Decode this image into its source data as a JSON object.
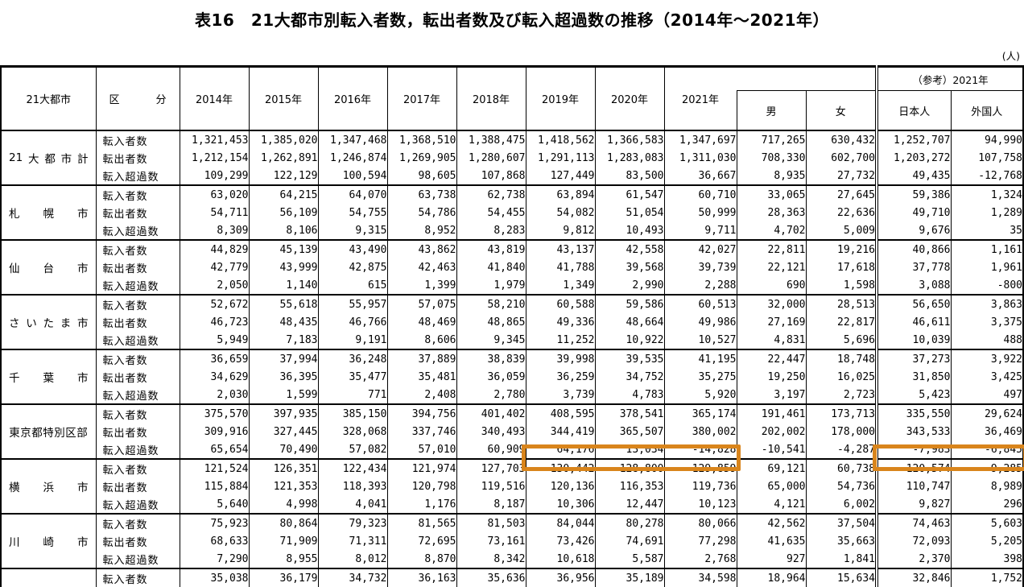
{
  "page_title": "表16　21大都市別転入者数，転出者数及び転入超過数の推移（2014年～2021年）",
  "unit_note": "(人)",
  "table": {
    "header": {
      "city_label": "21大都市",
      "category_label_segments": [
        "区",
        "分"
      ],
      "year_labels": [
        "2014年",
        "2015年",
        "2016年",
        "2017年",
        "2018年",
        "2019年",
        "2020年",
        "2021年"
      ],
      "male_label": "男",
      "female_label": "女",
      "reference_label": "（参考）2021年",
      "japanese_label": "日本人",
      "foreigner_label": "外国人"
    },
    "row_labels": [
      "転入者数",
      "転出者数",
      "転入超過数"
    ],
    "groups": [
      {
        "city": "21大都市計",
        "city_segments": [
          "21",
          "大",
          "都",
          "市",
          "計"
        ],
        "rows": [
          {
            "label": "転入者数",
            "values": [
              "1,321,453",
              "1,385,020",
              "1,347,468",
              "1,368,510",
              "1,388,475",
              "1,418,562",
              "1,366,583",
              "1,347,697",
              "717,265",
              "630,432",
              "1,252,707",
              "94,990"
            ]
          },
          {
            "label": "転出者数",
            "values": [
              "1,212,154",
              "1,262,891",
              "1,246,874",
              "1,269,905",
              "1,280,607",
              "1,291,113",
              "1,283,083",
              "1,311,030",
              "708,330",
              "602,700",
              "1,203,272",
              "107,758"
            ]
          },
          {
            "label": "転入超過数",
            "values": [
              "109,299",
              "122,129",
              "100,594",
              "98,605",
              "107,868",
              "127,449",
              "83,500",
              "36,667",
              "8,935",
              "27,732",
              "49,435",
              "-12,768"
            ]
          }
        ]
      },
      {
        "city": "札幌市",
        "city_segments": [
          "札",
          "幌",
          "市"
        ],
        "rows": [
          {
            "label": "転入者数",
            "values": [
              "63,020",
              "64,215",
              "64,070",
              "63,738",
              "62,738",
              "63,894",
              "61,547",
              "60,710",
              "33,065",
              "27,645",
              "59,386",
              "1,324"
            ]
          },
          {
            "label": "転出者数",
            "values": [
              "54,711",
              "56,109",
              "54,755",
              "54,786",
              "54,455",
              "54,082",
              "51,054",
              "50,999",
              "28,363",
              "22,636",
              "49,710",
              "1,289"
            ]
          },
          {
            "label": "転入超過数",
            "values": [
              "8,309",
              "8,106",
              "9,315",
              "8,952",
              "8,283",
              "9,812",
              "10,493",
              "9,711",
              "4,702",
              "5,009",
              "9,676",
              "35"
            ]
          }
        ]
      },
      {
        "city": "仙台市",
        "city_segments": [
          "仙",
          "台",
          "市"
        ],
        "rows": [
          {
            "label": "転入者数",
            "values": [
              "44,829",
              "45,139",
              "43,490",
              "43,862",
              "43,819",
              "43,137",
              "42,558",
              "42,027",
              "22,811",
              "19,216",
              "40,866",
              "1,161"
            ]
          },
          {
            "label": "転出者数",
            "values": [
              "42,779",
              "43,999",
              "42,875",
              "42,463",
              "41,840",
              "41,788",
              "39,568",
              "39,739",
              "22,121",
              "17,618",
              "37,778",
              "1,961"
            ]
          },
          {
            "label": "転入超過数",
            "values": [
              "2,050",
              "1,140",
              "615",
              "1,399",
              "1,979",
              "1,349",
              "2,990",
              "2,288",
              "690",
              "1,598",
              "3,088",
              "-800"
            ]
          }
        ]
      },
      {
        "city": "さいたま市",
        "city_segments": [
          "さ",
          "い",
          "た",
          "ま",
          "市"
        ],
        "rows": [
          {
            "label": "転入者数",
            "values": [
              "52,672",
              "55,618",
              "55,957",
              "57,075",
              "58,210",
              "60,588",
              "59,586",
              "60,513",
              "32,000",
              "28,513",
              "56,650",
              "3,863"
            ]
          },
          {
            "label": "転出者数",
            "values": [
              "46,723",
              "48,435",
              "46,766",
              "48,469",
              "48,865",
              "49,336",
              "48,664",
              "49,986",
              "27,169",
              "22,817",
              "46,611",
              "3,375"
            ]
          },
          {
            "label": "転入超過数",
            "values": [
              "5,949",
              "7,183",
              "9,191",
              "8,606",
              "9,345",
              "11,252",
              "10,922",
              "10,527",
              "4,831",
              "5,696",
              "10,039",
              "488"
            ]
          }
        ]
      },
      {
        "city": "千葉市",
        "city_segments": [
          "千",
          "葉",
          "市"
        ],
        "rows": [
          {
            "label": "転入者数",
            "values": [
              "36,659",
              "37,994",
              "36,248",
              "37,889",
              "38,839",
              "39,998",
              "39,535",
              "41,195",
              "22,447",
              "18,748",
              "37,273",
              "3,922"
            ]
          },
          {
            "label": "転出者数",
            "values": [
              "34,629",
              "36,395",
              "35,477",
              "35,481",
              "36,059",
              "36,259",
              "34,752",
              "35,275",
              "19,250",
              "16,025",
              "31,850",
              "3,425"
            ]
          },
          {
            "label": "転入超過数",
            "values": [
              "2,030",
              "1,599",
              "771",
              "2,408",
              "2,780",
              "3,739",
              "4,783",
              "5,920",
              "3,197",
              "2,723",
              "5,423",
              "497"
            ]
          }
        ]
      },
      {
        "city": "東京都特別区部",
        "city_segments": [
          "東京都特別区部"
        ],
        "rows": [
          {
            "label": "転入者数",
            "values": [
              "375,570",
              "397,935",
              "385,150",
              "394,756",
              "401,402",
              "408,595",
              "378,541",
              "365,174",
              "191,461",
              "173,713",
              "335,550",
              "29,624"
            ]
          },
          {
            "label": "転出者数",
            "values": [
              "309,916",
              "327,445",
              "328,068",
              "337,746",
              "340,493",
              "344,419",
              "365,507",
              "380,002",
              "202,002",
              "178,000",
              "343,533",
              "36,469"
            ]
          },
          {
            "label": "転入超過数",
            "values": [
              "65,654",
              "70,490",
              "57,082",
              "57,010",
              "60,909",
              "64,176",
              "13,034",
              "-14,828",
              "-10,541",
              "-4,287",
              "-7,983",
              "-6,845"
            ]
          }
        ]
      },
      {
        "city": "横浜市",
        "city_segments": [
          "横",
          "浜",
          "市"
        ],
        "rows": [
          {
            "label": "転入者数",
            "values": [
              "121,524",
              "126,351",
              "122,434",
              "121,974",
              "127,703",
              "130,442",
              "128,800",
              "129,859",
              "69,121",
              "60,738",
              "120,574",
              "9,285"
            ]
          },
          {
            "label": "転出者数",
            "values": [
              "115,884",
              "121,353",
              "118,393",
              "120,798",
              "119,516",
              "120,136",
              "116,353",
              "119,736",
              "65,000",
              "54,736",
              "110,747",
              "8,989"
            ]
          },
          {
            "label": "転入超過数",
            "values": [
              "5,640",
              "4,998",
              "4,041",
              "1,176",
              "8,187",
              "10,306",
              "12,447",
              "10,123",
              "4,121",
              "6,002",
              "9,827",
              "296"
            ]
          }
        ]
      },
      {
        "city": "川崎市",
        "city_segments": [
          "川",
          "崎",
          "市"
        ],
        "rows": [
          {
            "label": "転入者数",
            "values": [
              "75,923",
              "80,864",
              "79,323",
              "81,565",
              "81,503",
              "84,044",
              "80,278",
              "80,066",
              "42,562",
              "37,504",
              "74,463",
              "5,603"
            ]
          },
          {
            "label": "転出者数",
            "values": [
              "68,633",
              "71,909",
              "71,311",
              "72,695",
              "73,161",
              "73,426",
              "74,691",
              "77,298",
              "41,635",
              "35,663",
              "72,093",
              "5,205"
            ]
          },
          {
            "label": "転入超過数",
            "values": [
              "7,290",
              "8,955",
              "8,012",
              "8,870",
              "8,342",
              "10,618",
              "5,587",
              "2,768",
              "927",
              "1,841",
              "2,370",
              "398"
            ]
          }
        ]
      },
      {
        "city": "",
        "city_segments": [
          ""
        ],
        "partial": true,
        "rows": [
          {
            "label": "転入者数",
            "values": [
              "35,038",
              "36,179",
              "34,732",
              "36,163",
              "35,636",
              "36,956",
              "35,189",
              "34,598",
              "18,964",
              "15,634",
              "32,846",
              "1,752"
            ]
          }
        ]
      }
    ],
    "highlight_color": "#D9851C",
    "highlights": [
      {
        "group": "東京都特別区部",
        "row_label": "転入超過数",
        "columns": [
          "2019年",
          "2020年",
          "2021年"
        ],
        "col_indexes": [
          5,
          6,
          7
        ]
      },
      {
        "group": "東京都特別区部",
        "row_label": "転入超過数",
        "columns": [
          "日本人",
          "外国人"
        ],
        "col_indexes": [
          10,
          11
        ]
      }
    ]
  }
}
